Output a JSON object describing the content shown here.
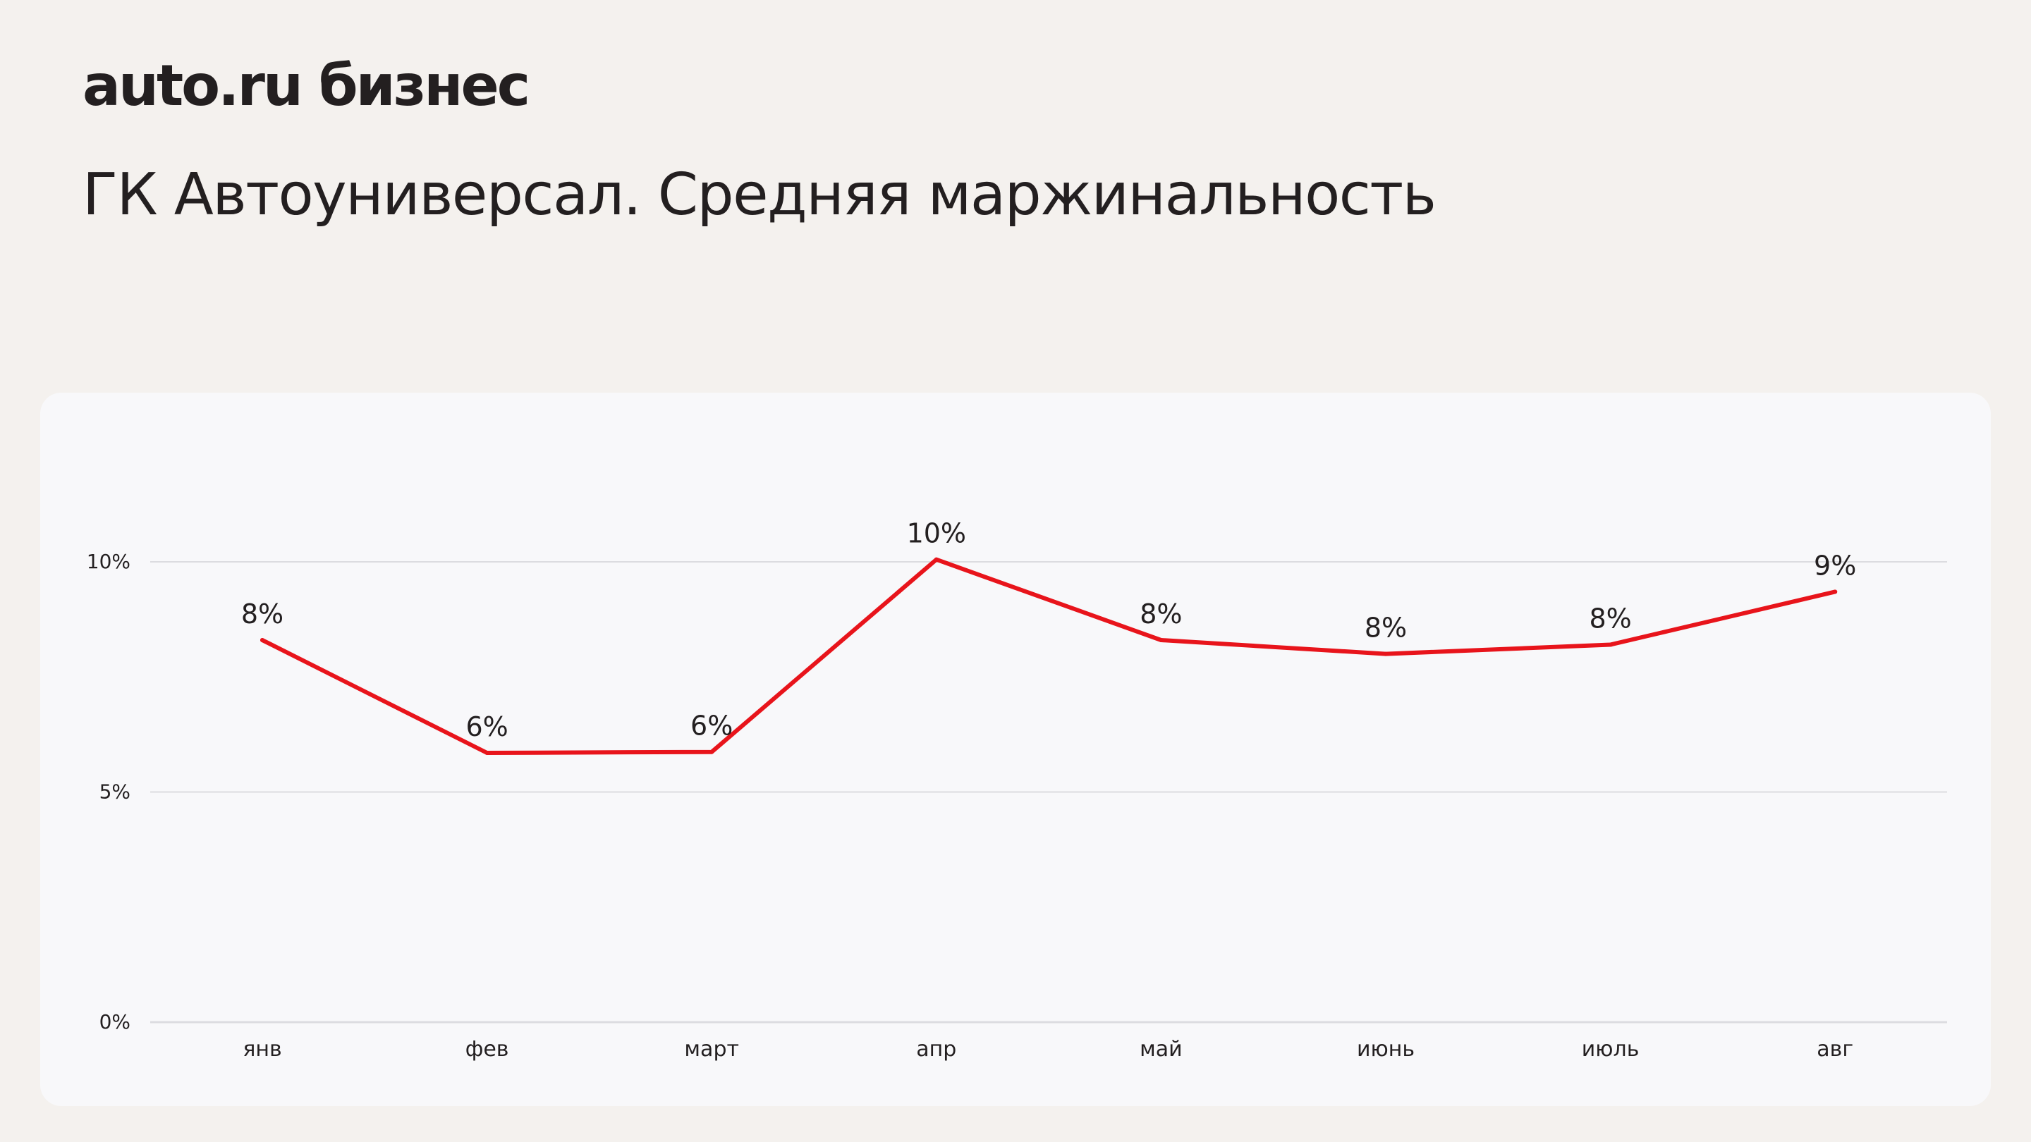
{
  "header": {
    "logo": "auto.ru бизнес",
    "title": "ГК Автоуниверсал. Средняя маржинальность"
  },
  "colors": {
    "line": "#e8141b",
    "grid": "#dcdce0",
    "text": "#231f20"
  },
  "chart_data": {
    "type": "line",
    "categories": [
      "янв",
      "фев",
      "март",
      "апр",
      "май",
      "июнь",
      "июль",
      "авг"
    ],
    "series": [
      {
        "values": [
          8.3,
          5.85,
          5.87,
          10.05,
          8.3,
          8.0,
          8.2,
          9.35
        ],
        "data_labels": [
          "8%",
          "6%",
          "6%",
          "10%",
          "8%",
          "8%",
          "8%",
          "9%"
        ]
      }
    ],
    "y_ticks": [
      {
        "value": 0,
        "label": "0%"
      },
      {
        "value": 5,
        "label": "5%"
      },
      {
        "value": 10,
        "label": "10%"
      }
    ],
    "ylim": [
      0,
      10
    ],
    "grid": true,
    "legend": "none"
  }
}
